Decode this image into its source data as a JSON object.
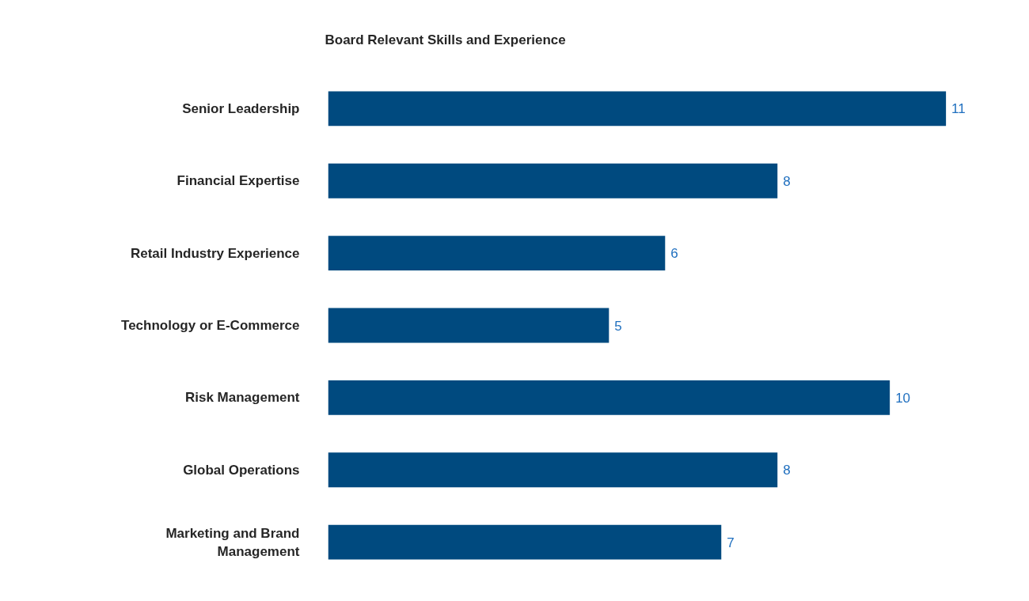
{
  "chart_data": {
    "type": "bar",
    "orientation": "horizontal",
    "title": "Board Relevant Skills and Experience",
    "categories": [
      "Senior Leadership",
      "Financial Expertise",
      "Retail Industry Experience",
      "Technology or E-Commerce",
      "Risk Management",
      "Global Operations",
      "Marketing and Brand Management"
    ],
    "values": [
      11,
      8,
      6,
      5,
      10,
      8,
      7
    ],
    "color": "#004a7f",
    "data_labels": true,
    "grid": false
  }
}
